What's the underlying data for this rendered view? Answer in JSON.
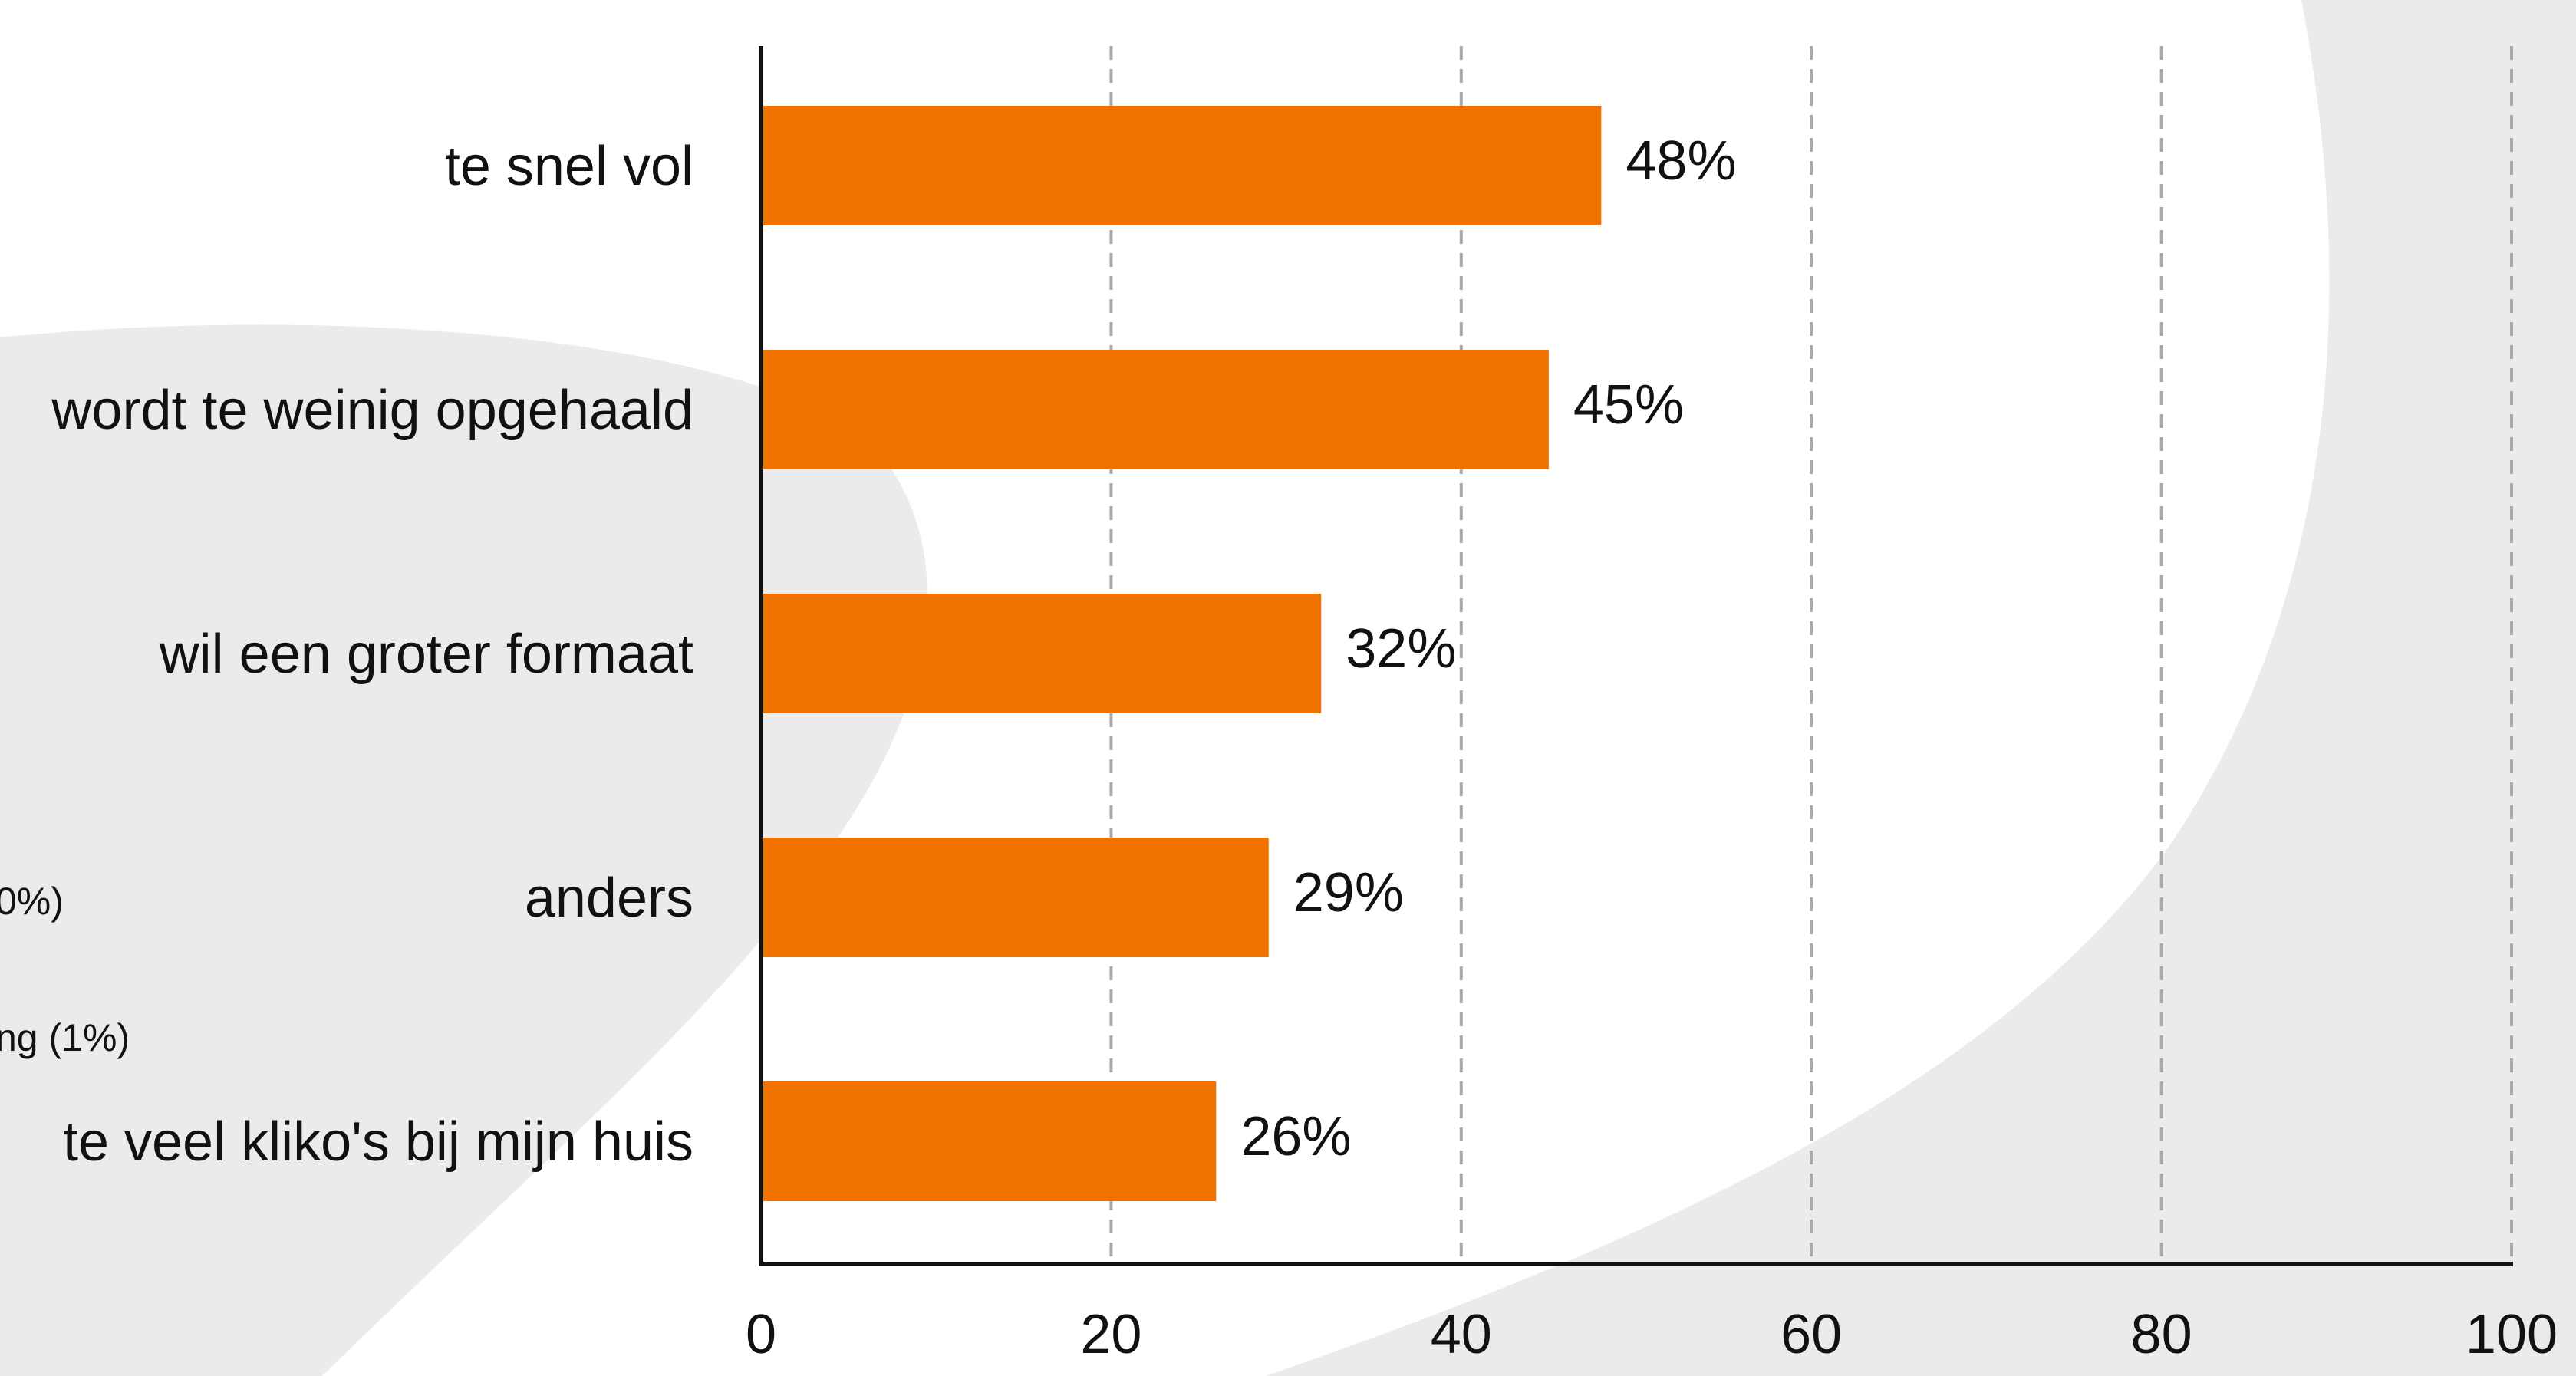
{
  "background_fragments": {
    "frag_1": "0%)",
    "frag_2": "ng (1%)"
  },
  "colors": {
    "bar": "#f07300",
    "grid": "#aaaaaa",
    "axis": "#111111",
    "bg_shape": "#ebebeb",
    "text": "#111111"
  },
  "chart_data": {
    "type": "bar",
    "orientation": "horizontal",
    "categories": [
      "te snel vol",
      "wordt te weinig opgehaald",
      "wil een groter formaat",
      "anders",
      "te veel kliko's bij mijn huis"
    ],
    "values": [
      48,
      45,
      32,
      29,
      26
    ],
    "value_labels": [
      "48%",
      "45%",
      "32%",
      "29%",
      "26%"
    ],
    "xlim": [
      0,
      100
    ],
    "xticks": [
      0,
      20,
      40,
      60,
      80,
      100
    ],
    "xtick_labels": [
      "0",
      "20",
      "40",
      "60",
      "80",
      "100"
    ],
    "grid": "vertical dashed",
    "legend": "none",
    "title": "",
    "xlabel": "",
    "ylabel": ""
  }
}
